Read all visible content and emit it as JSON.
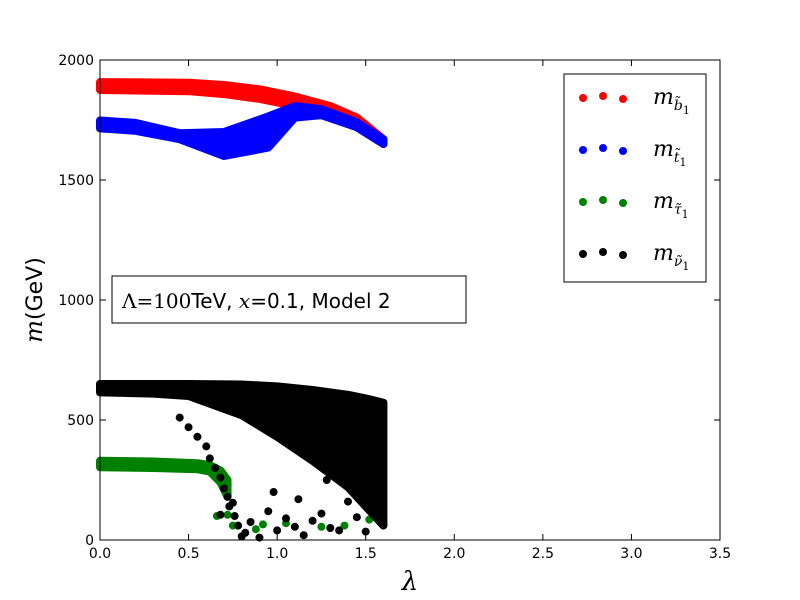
{
  "chart_data": {
    "type": "scatter",
    "title": "",
    "xlabel": "λ",
    "ylabel_italic": "m",
    "ylabel_unit": "(GeV)",
    "xlim": [
      0,
      3.5
    ],
    "ylim": [
      0,
      2000
    ],
    "x_ticks": [
      "0.0",
      "0.5",
      "1.0",
      "1.5",
      "2.0",
      "2.5",
      "3.0",
      "3.5"
    ],
    "y_ticks": [
      "0",
      "500",
      "1000",
      "1500",
      "2000"
    ],
    "grid": false,
    "legend_position": "top-right",
    "annotation": {
      "Lambda_expr": "Λ=100",
      "Lambda_unit": "TeV, ",
      "x_expr": "x",
      "x_value": "=0.1, Model 2"
    },
    "series": [
      {
        "name": "m_b1",
        "label_base": "m",
        "label_sub": "b̃",
        "label_subsub": "1",
        "color": "#ff0000",
        "band": {
          "x": [
            0,
            0.5,
            0.7,
            0.9,
            1.1,
            1.3,
            1.45,
            1.6
          ],
          "y_low": [
            1875,
            1870,
            1858,
            1838,
            1808,
            1768,
            1720,
            1650
          ],
          "y_high": [
            1908,
            1905,
            1896,
            1878,
            1848,
            1808,
            1760,
            1670
          ]
        }
      },
      {
        "name": "m_t1",
        "label_base": "m",
        "label_sub": "t̃",
        "label_subsub": "1",
        "color": "#0000ff",
        "band": {
          "x": [
            0,
            0.2,
            0.45,
            0.7,
            0.95,
            1.1,
            1.25,
            1.45,
            1.6
          ],
          "y_low": [
            1715,
            1705,
            1670,
            1600,
            1635,
            1760,
            1770,
            1720,
            1650
          ],
          "y_high": [
            1748,
            1738,
            1695,
            1700,
            1765,
            1808,
            1795,
            1740,
            1670
          ]
        }
      },
      {
        "name": "m_tau1",
        "label_base": "m",
        "label_sub": "τ̃",
        "label_subsub": "1",
        "color": "#008000",
        "band": {
          "x": [
            0,
            0.3,
            0.55,
            0.62,
            0.68,
            0.72
          ],
          "y_low": [
            303,
            300,
            295,
            285,
            240,
            180
          ],
          "y_high": [
            330,
            327,
            320,
            312,
            290,
            250
          ]
        },
        "points": [
          [
            0.66,
            100
          ],
          [
            0.72,
            105
          ],
          [
            0.75,
            60
          ],
          [
            0.92,
            65
          ],
          [
            1.05,
            70
          ],
          [
            1.25,
            55
          ],
          [
            1.38,
            60
          ],
          [
            1.52,
            85
          ],
          [
            0.88,
            45
          ]
        ]
      },
      {
        "name": "m_nu1",
        "label_base": "m",
        "label_sub": "ν̃",
        "label_subsub": "1",
        "color": "#000000",
        "band": {
          "x": [
            0,
            0.3,
            0.5,
            0.8,
            1.0,
            1.2,
            1.4,
            1.5,
            1.6
          ],
          "y_low": [
            615,
            610,
            600,
            520,
            430,
            330,
            220,
            140,
            60
          ],
          "y_high": [
            650,
            650,
            650,
            648,
            640,
            625,
            605,
            590,
            572
          ]
        },
        "points": [
          [
            0.45,
            510
          ],
          [
            0.5,
            470
          ],
          [
            0.55,
            430
          ],
          [
            0.6,
            390
          ],
          [
            0.62,
            340
          ],
          [
            0.65,
            300
          ],
          [
            0.68,
            260
          ],
          [
            0.7,
            215
          ],
          [
            0.72,
            180
          ],
          [
            0.73,
            140
          ],
          [
            0.76,
            100
          ],
          [
            0.78,
            60
          ],
          [
            0.8,
            15
          ],
          [
            0.68,
            105
          ],
          [
            0.75,
            155
          ],
          [
            0.82,
            30
          ],
          [
            0.85,
            75
          ],
          [
            0.9,
            10
          ],
          [
            0.95,
            120
          ],
          [
            1.0,
            40
          ],
          [
            1.05,
            90
          ],
          [
            1.1,
            55
          ],
          [
            1.15,
            20
          ],
          [
            1.2,
            80
          ],
          [
            1.25,
            110
          ],
          [
            1.3,
            50
          ],
          [
            1.35,
            40
          ],
          [
            1.4,
            160
          ],
          [
            1.45,
            95
          ],
          [
            1.5,
            35
          ],
          [
            1.55,
            120
          ],
          [
            1.6,
            65
          ],
          [
            0.98,
            200
          ],
          [
            1.12,
            170
          ],
          [
            1.28,
            250
          ],
          [
            1.5,
            210
          ]
        ]
      }
    ]
  }
}
